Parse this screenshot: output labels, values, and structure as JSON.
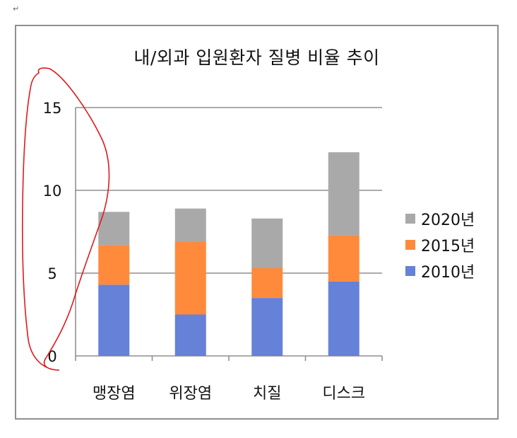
{
  "page": {
    "para_mark": "↵"
  },
  "colors": {
    "y2010": "#6581d8",
    "y2015": "#ff8a3c",
    "y2020": "#a9a9a9",
    "gridline": "#8f8f8f",
    "annotation": "#e0191d"
  },
  "chart_data": {
    "type": "bar",
    "stacked": true,
    "title": "내/외과 입원환자 질병 비율 추이",
    "categories": [
      "맹장염",
      "위장염",
      "치질",
      "디스크"
    ],
    "series": [
      {
        "name": "2010년",
        "values": [
          4.3,
          2.5,
          3.5,
          4.5
        ]
      },
      {
        "name": "2015년",
        "values": [
          2.4,
          4.4,
          1.8,
          2.8
        ]
      },
      {
        "name": "2020년",
        "values": [
          2.0,
          2.0,
          3.0,
          5.0
        ]
      }
    ],
    "ylim": [
      0,
      15
    ],
    "yticks": [
      0,
      5,
      10,
      15
    ],
    "xlabel": "",
    "ylabel": "",
    "grid": true,
    "legend_position": "right",
    "annotation": "red hand-drawn outline around the y-axis tick labels"
  }
}
